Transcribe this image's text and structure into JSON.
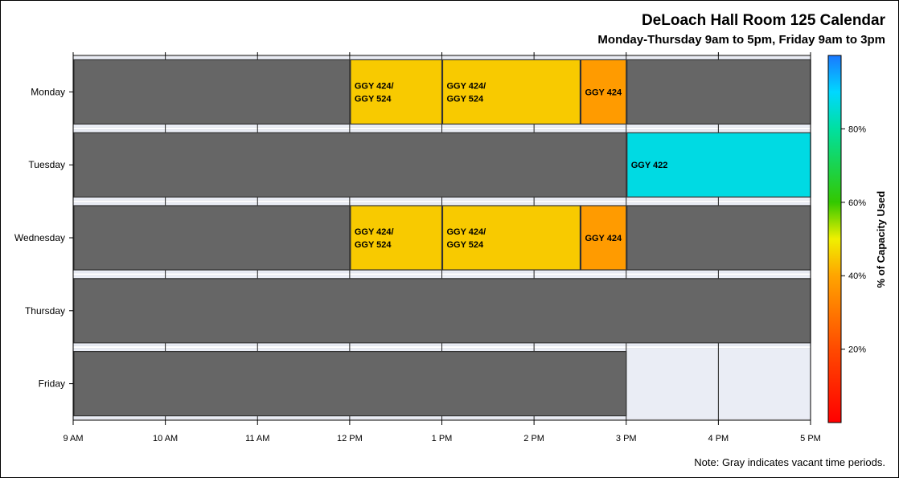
{
  "title": "DeLoach Hall Room 125 Calendar",
  "subtitle": "Monday-Thursday 9am to 5pm, Friday 9am to 3pm",
  "note": "Note: Gray indicates vacant time periods.",
  "chart_data": {
    "type": "timeline",
    "days": [
      "Monday",
      "Tuesday",
      "Wednesday",
      "Thursday",
      "Friday"
    ],
    "x_ticks": [
      {
        "hour": 9,
        "label": "9 AM"
      },
      {
        "hour": 10,
        "label": "10 AM"
      },
      {
        "hour": 11,
        "label": "11 AM"
      },
      {
        "hour": 12,
        "label": "12 PM"
      },
      {
        "hour": 13,
        "label": "1 PM"
      },
      {
        "hour": 14,
        "label": "2 PM"
      },
      {
        "hour": 15,
        "label": "3 PM"
      },
      {
        "hour": 16,
        "label": "4 PM"
      },
      {
        "hour": 17,
        "label": "5 PM"
      }
    ],
    "xlim": [
      9,
      17
    ],
    "vacant_color": "#666666",
    "closed_color": "#eaedf5",
    "blocks": [
      {
        "day": "Monday",
        "start": 9,
        "end": 12,
        "label": "",
        "vacant": true
      },
      {
        "day": "Monday",
        "start": 12,
        "end": 13,
        "label": "GGY 424/|GGY 524",
        "capacity": 45
      },
      {
        "day": "Monday",
        "start": 13,
        "end": 14.5,
        "label": "GGY 424/|GGY 524",
        "capacity": 45
      },
      {
        "day": "Monday",
        "start": 14.5,
        "end": 15,
        "label": "GGY 424",
        "capacity": 38
      },
      {
        "day": "Monday",
        "start": 15,
        "end": 17,
        "label": "",
        "vacant": true
      },
      {
        "day": "Tuesday",
        "start": 9,
        "end": 15,
        "label": "",
        "vacant": true
      },
      {
        "day": "Tuesday",
        "start": 15,
        "end": 17,
        "label": "GGY 422",
        "capacity": 87
      },
      {
        "day": "Wednesday",
        "start": 9,
        "end": 12,
        "label": "",
        "vacant": true
      },
      {
        "day": "Wednesday",
        "start": 12,
        "end": 13,
        "label": "GGY 424/|GGY 524",
        "capacity": 45
      },
      {
        "day": "Wednesday",
        "start": 13,
        "end": 14.5,
        "label": "GGY 424/|GGY 524",
        "capacity": 45
      },
      {
        "day": "Wednesday",
        "start": 14.5,
        "end": 15,
        "label": "GGY 424",
        "capacity": 38
      },
      {
        "day": "Wednesday",
        "start": 15,
        "end": 17,
        "label": "",
        "vacant": true
      },
      {
        "day": "Thursday",
        "start": 9,
        "end": 17,
        "label": "",
        "vacant": true
      },
      {
        "day": "Friday",
        "start": 9,
        "end": 15,
        "label": "",
        "vacant": true
      }
    ],
    "colorbar": {
      "label": "% of Capacity Used",
      "range": [
        0,
        100
      ],
      "ticks": [
        {
          "value": 20,
          "label": "20%"
        },
        {
          "value": 40,
          "label": "40%"
        },
        {
          "value": 60,
          "label": "60%"
        },
        {
          "value": 80,
          "label": "80%"
        }
      ],
      "stops": [
        {
          "value": 0,
          "color": "#ff0000"
        },
        {
          "value": 20,
          "color": "#ff4a00"
        },
        {
          "value": 40,
          "color": "#ffa400"
        },
        {
          "value": 50,
          "color": "#f0f000"
        },
        {
          "value": 60,
          "color": "#33c800"
        },
        {
          "value": 80,
          "color": "#00e0a0"
        },
        {
          "value": 90,
          "color": "#00d8ff"
        },
        {
          "value": 100,
          "color": "#1a78ff"
        }
      ]
    }
  }
}
